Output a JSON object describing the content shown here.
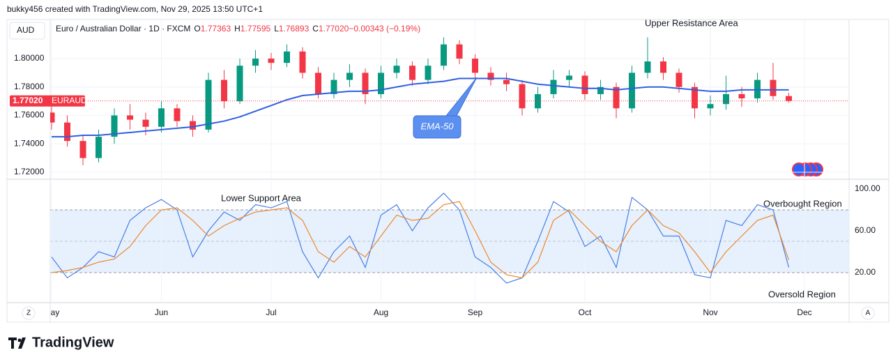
{
  "header": {
    "caption": "bukky456 created with TradingView.com, Nov 29, 2025 13:50 UTC+1"
  },
  "toolbar": {
    "currency": "AUD",
    "left_button": "Z",
    "right_button": "A"
  },
  "footer": {
    "brand": "TradingView"
  },
  "chart_data": [
    {
      "type": "candlestick",
      "title": "Euro / Australian Dollar · 1D · FXCM",
      "legend_values": [
        {
          "key": "O",
          "value": "1.77363"
        },
        {
          "key": "H",
          "value": "1.77595"
        },
        {
          "key": "L",
          "value": "1.76893"
        },
        {
          "key": "C",
          "value": "1.77020"
        },
        {
          "key": "",
          "value": "−0.00343 (−0.19%)"
        }
      ],
      "categories": [
        "May",
        null,
        null,
        null,
        null,
        null,
        null,
        "Jun",
        null,
        null,
        null,
        null,
        null,
        null,
        "Jul",
        null,
        null,
        null,
        null,
        null,
        null,
        "Aug",
        null,
        null,
        null,
        null,
        null,
        "Sep",
        null,
        null,
        null,
        null,
        null,
        null,
        "Oct",
        null,
        null,
        null,
        null,
        null,
        null,
        null,
        "Nov",
        null,
        null,
        null,
        null,
        null,
        "Dec"
      ],
      "open": [
        1.762,
        1.755,
        1.742,
        1.73,
        1.745,
        1.76,
        1.757,
        1.752,
        1.765,
        1.756,
        1.75,
        1.785,
        1.77,
        1.795,
        1.8,
        1.797,
        1.805,
        1.79,
        1.775,
        1.785,
        1.79,
        1.775,
        1.79,
        1.795,
        1.785,
        1.795,
        1.81,
        1.8,
        1.79,
        1.785,
        1.782,
        1.765,
        1.775,
        1.785,
        1.788,
        1.775,
        1.78,
        1.765,
        1.79,
        1.798,
        1.79,
        1.78,
        1.765,
        1.768,
        1.775,
        1.772,
        1.785,
        1.77363,
        null
      ],
      "high": [
        1.768,
        1.76,
        1.746,
        1.75,
        1.765,
        1.768,
        1.762,
        1.77,
        1.768,
        1.76,
        1.79,
        1.792,
        1.8,
        1.806,
        1.804,
        1.81,
        1.808,
        1.794,
        1.79,
        1.796,
        1.793,
        1.795,
        1.8,
        1.798,
        1.8,
        1.815,
        1.813,
        1.803,
        1.794,
        1.79,
        1.785,
        1.78,
        1.792,
        1.792,
        1.791,
        1.785,
        1.783,
        1.795,
        1.815,
        1.801,
        1.793,
        1.783,
        1.774,
        1.788,
        1.78,
        1.79,
        1.797,
        1.77595,
        null
      ],
      "low": [
        1.75,
        1.738,
        1.725,
        1.727,
        1.74,
        1.75,
        1.746,
        1.748,
        1.752,
        1.745,
        1.748,
        1.765,
        1.768,
        1.79,
        1.792,
        1.794,
        1.786,
        1.772,
        1.772,
        1.78,
        1.768,
        1.772,
        1.786,
        1.781,
        1.782,
        1.792,
        1.796,
        1.786,
        1.781,
        1.777,
        1.76,
        1.762,
        1.772,
        1.78,
        1.771,
        1.771,
        1.758,
        1.762,
        1.786,
        1.785,
        1.776,
        1.758,
        1.76,
        1.764,
        1.766,
        1.769,
        1.771,
        1.76893,
        null
      ],
      "close": [
        1.755,
        1.742,
        1.73,
        1.745,
        1.76,
        1.757,
        1.752,
        1.765,
        1.756,
        1.75,
        1.785,
        1.77,
        1.795,
        1.8,
        1.797,
        1.805,
        1.79,
        1.775,
        1.785,
        1.79,
        1.775,
        1.79,
        1.795,
        1.785,
        1.795,
        1.81,
        1.8,
        1.79,
        1.785,
        1.782,
        1.765,
        1.775,
        1.785,
        1.788,
        1.775,
        1.78,
        1.765,
        1.79,
        1.798,
        1.79,
        1.78,
        1.765,
        1.768,
        1.775,
        1.772,
        1.785,
        1.77363,
        1.7702,
        null
      ],
      "up_color": "#089981",
      "down_color": "#f23645",
      "series": [
        {
          "name": "EMA-50",
          "color": "#2f5fe0",
          "values": [
            1.745,
            1.745,
            1.746,
            1.746,
            1.747,
            1.748,
            1.749,
            1.75,
            1.751,
            1.752,
            1.754,
            1.756,
            1.759,
            1.763,
            1.767,
            1.771,
            1.774,
            1.775,
            1.776,
            1.777,
            1.777,
            1.778,
            1.78,
            1.782,
            1.783,
            1.784,
            1.786,
            1.786,
            1.786,
            1.786,
            1.784,
            1.782,
            1.781,
            1.78,
            1.779,
            1.779,
            1.778,
            1.779,
            1.78,
            1.78,
            1.779,
            1.778,
            1.777,
            1.777,
            1.778,
            1.778,
            1.778,
            1.778,
            null
          ]
        }
      ],
      "ylim": [
        1.7151,
        1.8275
      ],
      "yticks": [
        {
          "value": 1.72,
          "label": "1.72000"
        },
        {
          "value": 1.74,
          "label": "1.74000"
        },
        {
          "value": 1.76,
          "label": "1.76000"
        },
        {
          "value": 1.78,
          "label": "1.78000"
        },
        {
          "value": 1.8,
          "label": "1.80000"
        }
      ],
      "grid": true,
      "last_price": {
        "value": 1.7702,
        "label": "1.77020"
      },
      "symbol": "EURAUD",
      "annotations": [
        "Upper Resistance Area"
      ]
    },
    {
      "type": "line",
      "series": [
        {
          "color": "#4a7ee6",
          "values": [
            35,
            15,
            25,
            40,
            35,
            70,
            82,
            90,
            80,
            35,
            60,
            78,
            70,
            85,
            82,
            88,
            40,
            15,
            40,
            55,
            25,
            75,
            85,
            60,
            82,
            96,
            80,
            35,
            25,
            10,
            15,
            50,
            88,
            78,
            45,
            55,
            25,
            92,
            80,
            55,
            55,
            18,
            15,
            70,
            65,
            85,
            80,
            25,
            null
          ]
        },
        {
          "color": "#f0862a",
          "values": [
            20,
            22,
            25,
            30,
            33,
            45,
            65,
            80,
            82,
            70,
            55,
            65,
            72,
            78,
            80,
            82,
            70,
            40,
            30,
            45,
            35,
            55,
            75,
            70,
            72,
            85,
            88,
            60,
            30,
            18,
            15,
            30,
            70,
            80,
            65,
            50,
            40,
            65,
            80,
            65,
            58,
            40,
            20,
            40,
            55,
            70,
            75,
            32,
            null
          ]
        }
      ],
      "ylim": [
        -8.7,
        108.7
      ],
      "yticks": [
        {
          "value": 20,
          "label": "20.00"
        },
        {
          "value": 60,
          "label": "60.00"
        },
        {
          "value": 100,
          "label": "100.00"
        }
      ],
      "bands": [
        20,
        80
      ],
      "midline": 50,
      "band_color": "#e6f1fd",
      "annotations": [
        "Lower Support Area",
        "Overbought Region",
        "Oversold Region"
      ]
    }
  ]
}
